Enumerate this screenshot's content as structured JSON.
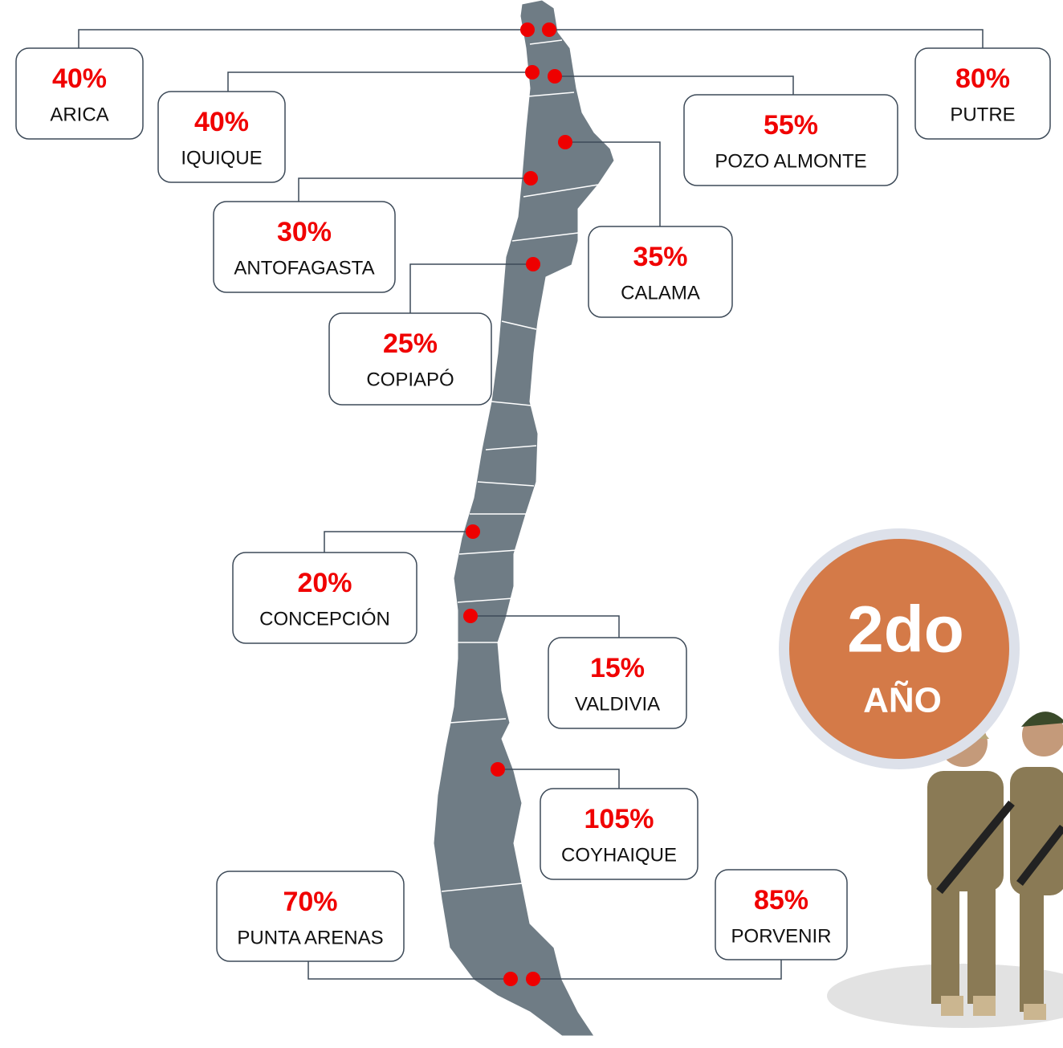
{
  "locations": [
    {
      "value": "40%",
      "name": "ARICA"
    },
    {
      "value": "80%",
      "name": "PUTRE"
    },
    {
      "value": "40%",
      "name": "IQUIQUE"
    },
    {
      "value": "55%",
      "name": "POZO ALMONTE"
    },
    {
      "value": "30%",
      "name": "ANTOFAGASTA"
    },
    {
      "value": "35%",
      "name": "CALAMA"
    },
    {
      "value": "25%",
      "name": "COPIAPÓ"
    },
    {
      "value": "20%",
      "name": "CONCEPCIÓN"
    },
    {
      "value": "15%",
      "name": "VALDIVIA"
    },
    {
      "value": "105%",
      "name": "COYHAIQUE"
    },
    {
      "value": "70%",
      "name": "PUNTA ARENAS"
    },
    {
      "value": "85%",
      "name": "PORVENIR"
    }
  ],
  "badge": {
    "title": "2do",
    "subtitle": "AÑO"
  }
}
